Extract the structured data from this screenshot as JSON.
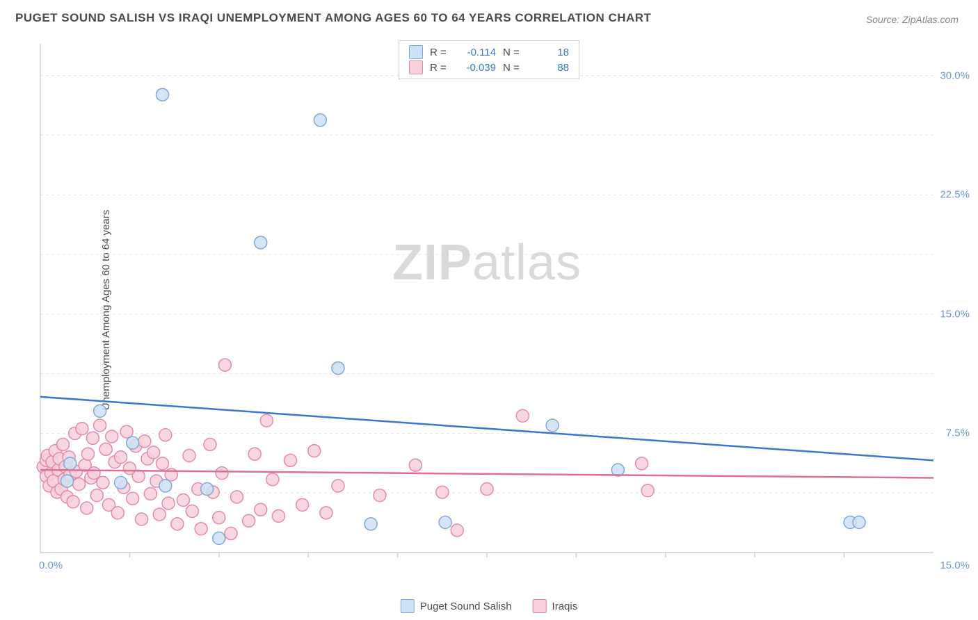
{
  "title": "PUGET SOUND SALISH VS IRAQI UNEMPLOYMENT AMONG AGES 60 TO 64 YEARS CORRELATION CHART",
  "source": "Source: ZipAtlas.com",
  "ylabel": "Unemployment Among Ages 60 to 64 years",
  "watermark_a": "ZIP",
  "watermark_b": "atlas",
  "chart": {
    "type": "scatter",
    "xlim": [
      0,
      15
    ],
    "ylim": [
      0,
      32
    ],
    "x_ticks": [
      0.0,
      15.0
    ],
    "x_tick_labels": [
      "0.0%",
      "15.0%"
    ],
    "y_ticks": [
      7.5,
      15.0,
      22.5,
      30.0
    ],
    "y_tick_labels": [
      "7.5%",
      "15.0%",
      "22.5%",
      "30.0%"
    ],
    "x_minor_ticks": [
      1.5,
      3.0,
      4.5,
      6.0,
      7.5,
      9.0,
      10.5,
      12.0,
      13.5
    ],
    "y_minor_grid": [
      3.75,
      11.25,
      18.75,
      26.25
    ],
    "background_color": "#ffffff",
    "grid_color": "#e6e6e6",
    "axis_color": "#d0d0d0",
    "marker_radius": 9,
    "marker_stroke_width": 1.5,
    "line_width": 2.5,
    "series": [
      {
        "name": "Puget Sound Salish",
        "fill": "#cfe1f4",
        "stroke": "#7fa9d6",
        "line_color": "#3a78c9",
        "R": "-0.114",
        "N": "18",
        "trend_y0": 9.8,
        "trend_y1": 5.8,
        "points": [
          [
            0.45,
            4.5
          ],
          [
            0.5,
            5.6
          ],
          [
            1.0,
            8.9
          ],
          [
            1.35,
            4.4
          ],
          [
            1.55,
            6.9
          ],
          [
            2.05,
            28.8
          ],
          [
            2.1,
            4.2
          ],
          [
            2.8,
            4.0
          ],
          [
            3.0,
            0.9
          ],
          [
            3.7,
            19.5
          ],
          [
            4.7,
            27.2
          ],
          [
            5.0,
            11.6
          ],
          [
            5.55,
            1.8
          ],
          [
            6.8,
            1.9
          ],
          [
            8.6,
            8.0
          ],
          [
            9.7,
            5.2
          ],
          [
            13.6,
            1.9
          ],
          [
            13.75,
            1.9
          ]
        ]
      },
      {
        "name": "Iraqis",
        "fill": "#f7d0dc",
        "stroke": "#e38ba8",
        "line_color": "#e16c94",
        "R": "-0.039",
        "N": "88",
        "trend_y0": 5.2,
        "trend_y1": 4.7,
        "points": [
          [
            0.05,
            5.4
          ],
          [
            0.1,
            4.8
          ],
          [
            0.1,
            5.8
          ],
          [
            0.12,
            6.1
          ],
          [
            0.15,
            4.2
          ],
          [
            0.18,
            5.0
          ],
          [
            0.2,
            5.7
          ],
          [
            0.22,
            4.5
          ],
          [
            0.25,
            6.4
          ],
          [
            0.28,
            3.8
          ],
          [
            0.3,
            5.2
          ],
          [
            0.32,
            5.9
          ],
          [
            0.35,
            4.0
          ],
          [
            0.38,
            6.8
          ],
          [
            0.4,
            4.6
          ],
          [
            0.42,
            5.4
          ],
          [
            0.45,
            3.5
          ],
          [
            0.48,
            6.0
          ],
          [
            0.5,
            4.9
          ],
          [
            0.55,
            3.2
          ],
          [
            0.58,
            7.5
          ],
          [
            0.6,
            5.1
          ],
          [
            0.65,
            4.3
          ],
          [
            0.7,
            7.8
          ],
          [
            0.75,
            5.5
          ],
          [
            0.78,
            2.8
          ],
          [
            0.8,
            6.2
          ],
          [
            0.85,
            4.7
          ],
          [
            0.88,
            7.2
          ],
          [
            0.9,
            5.0
          ],
          [
            0.95,
            3.6
          ],
          [
            1.0,
            8.0
          ],
          [
            1.05,
            4.4
          ],
          [
            1.1,
            6.5
          ],
          [
            1.15,
            3.0
          ],
          [
            1.2,
            7.3
          ],
          [
            1.25,
            5.7
          ],
          [
            1.3,
            2.5
          ],
          [
            1.35,
            6.0
          ],
          [
            1.4,
            4.1
          ],
          [
            1.45,
            7.6
          ],
          [
            1.5,
            5.3
          ],
          [
            1.55,
            3.4
          ],
          [
            1.6,
            6.7
          ],
          [
            1.65,
            4.8
          ],
          [
            1.7,
            2.1
          ],
          [
            1.75,
            7.0
          ],
          [
            1.8,
            5.9
          ],
          [
            1.85,
            3.7
          ],
          [
            1.9,
            6.3
          ],
          [
            1.95,
            4.5
          ],
          [
            2.0,
            2.4
          ],
          [
            2.05,
            5.6
          ],
          [
            2.1,
            7.4
          ],
          [
            2.15,
            3.1
          ],
          [
            2.2,
            4.9
          ],
          [
            2.3,
            1.8
          ],
          [
            2.4,
            3.3
          ],
          [
            2.5,
            6.1
          ],
          [
            2.55,
            2.6
          ],
          [
            2.65,
            4.0
          ],
          [
            2.7,
            1.5
          ],
          [
            2.85,
            6.8
          ],
          [
            2.9,
            3.8
          ],
          [
            3.0,
            2.2
          ],
          [
            3.05,
            5.0
          ],
          [
            3.2,
            1.2
          ],
          [
            3.1,
            11.8
          ],
          [
            3.3,
            3.5
          ],
          [
            3.5,
            2.0
          ],
          [
            3.6,
            6.2
          ],
          [
            3.7,
            2.7
          ],
          [
            3.8,
            8.3
          ],
          [
            3.9,
            4.6
          ],
          [
            4.0,
            2.3
          ],
          [
            4.2,
            5.8
          ],
          [
            4.4,
            3.0
          ],
          [
            4.6,
            6.4
          ],
          [
            4.8,
            2.5
          ],
          [
            5.0,
            4.2
          ],
          [
            5.7,
            3.6
          ],
          [
            6.3,
            5.5
          ],
          [
            6.75,
            3.8
          ],
          [
            7.0,
            1.4
          ],
          [
            7.5,
            4.0
          ],
          [
            8.1,
            8.6
          ],
          [
            10.1,
            5.6
          ],
          [
            10.2,
            3.9
          ]
        ]
      }
    ],
    "legend_bottom": [
      "Puget Sound Salish",
      "Iraqis"
    ]
  }
}
